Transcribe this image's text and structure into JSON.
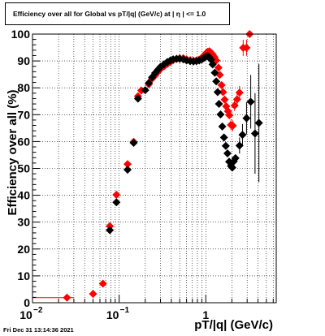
{
  "title": "Efficiency over all for Global vs pT/|q| (GeV/c) at |  η  | <= 1.0",
  "timestamp": "Fri Dec 31 13:14:36 2021",
  "chart_data": {
    "type": "scatter",
    "title": "Efficiency over all for Global vs pT/|q| (GeV/c) at |  η  | <= 1.0",
    "xlabel": "pT/|q| (GeV/c)",
    "ylabel": "Efficiency over all (%)",
    "xscale": "log",
    "xlim": [
      0.01,
      6.5
    ],
    "ylim": [
      0,
      100
    ],
    "grid": true,
    "y_ticks": [
      {
        "value": 0,
        "label": "0"
      },
      {
        "value": 10,
        "label": "10"
      },
      {
        "value": 20,
        "label": "20"
      },
      {
        "value": 30,
        "label": "30"
      },
      {
        "value": 40,
        "label": "40"
      },
      {
        "value": 50,
        "label": "50"
      },
      {
        "value": 60,
        "label": "60"
      },
      {
        "value": 70,
        "label": "70"
      },
      {
        "value": 80,
        "label": "80"
      },
      {
        "value": 90,
        "label": "90"
      },
      {
        "value": 100,
        "label": "100"
      }
    ],
    "x_ticks": [
      {
        "value": 0.01,
        "label": "10",
        "exp": "−2"
      },
      {
        "value": 0.1,
        "label": "10",
        "exp": "−1"
      },
      {
        "value": 1,
        "label": "1",
        "exp": ""
      }
    ],
    "series": [
      {
        "color": "#ff0000",
        "marker": "diamond",
        "points": [
          {
            "x": 0.025,
            "y": 1.9,
            "xlo": 0.0101,
            "xhi": 0.03
          },
          {
            "x": 0.05,
            "y": 3.3,
            "xlo": 0.045,
            "xhi": 0.055,
            "err": 1.5
          },
          {
            "x": 0.065,
            "y": 7.1
          },
          {
            "x": 0.078,
            "y": 28.5
          },
          {
            "x": 0.093,
            "y": 40.2
          },
          {
            "x": 0.125,
            "y": 51.6
          },
          {
            "x": 0.147,
            "y": 59.9
          },
          {
            "x": 0.165,
            "y": 76.9
          },
          {
            "x": 0.18,
            "y": 79.0
          },
          {
            "x": 0.22,
            "y": 81.3
          },
          {
            "x": 0.24,
            "y": 83.4
          },
          {
            "x": 0.26,
            "y": 84.6
          },
          {
            "x": 0.28,
            "y": 85.9
          },
          {
            "x": 0.3,
            "y": 87.0
          },
          {
            "x": 0.33,
            "y": 88.0
          },
          {
            "x": 0.36,
            "y": 88.9
          },
          {
            "x": 0.39,
            "y": 89.6
          },
          {
            "x": 0.42,
            "y": 90.3
          },
          {
            "x": 0.46,
            "y": 90.8
          },
          {
            "x": 0.5,
            "y": 91.0
          },
          {
            "x": 0.55,
            "y": 91.0
          },
          {
            "x": 0.6,
            "y": 90.6
          },
          {
            "x": 0.66,
            "y": 90.3
          },
          {
            "x": 0.72,
            "y": 90.1
          },
          {
            "x": 0.78,
            "y": 90.2
          },
          {
            "x": 0.84,
            "y": 90.5
          },
          {
            "x": 0.9,
            "y": 91.2
          },
          {
            "x": 0.95,
            "y": 92.0
          },
          {
            "x": 1.0,
            "y": 92.8
          },
          {
            "x": 1.05,
            "y": 93.4
          },
          {
            "x": 1.1,
            "y": 93.6
          },
          {
            "x": 1.15,
            "y": 93.1
          },
          {
            "x": 1.2,
            "y": 92.4
          },
          {
            "x": 1.26,
            "y": 91.4
          },
          {
            "x": 1.32,
            "y": 90.2
          },
          {
            "x": 1.4,
            "y": 87.5
          },
          {
            "x": 1.45,
            "y": 84.8
          },
          {
            "x": 1.52,
            "y": 81.0
          },
          {
            "x": 1.58,
            "y": 78.4
          },
          {
            "x": 1.65,
            "y": 75.6
          },
          {
            "x": 1.72,
            "y": 73.1
          },
          {
            "x": 1.8,
            "y": 71.3
          },
          {
            "x": 1.87,
            "y": 69.8
          },
          {
            "x": 1.95,
            "y": 66.2,
            "err": 2
          },
          {
            "x": 2.05,
            "y": 65.9,
            "err": 2
          },
          {
            "x": 2.15,
            "y": 73.4,
            "err": 2
          },
          {
            "x": 2.3,
            "y": 75.7,
            "err": 2
          },
          {
            "x": 2.45,
            "y": 78.2,
            "err": 2.5
          },
          {
            "x": 2.7,
            "y": 94.9,
            "err": 3
          },
          {
            "x": 2.95,
            "y": 94.9,
            "err": 3
          },
          {
            "x": 3.2,
            "y": 100.0
          }
        ]
      },
      {
        "color": "#000000",
        "marker": "diamond",
        "points": [
          {
            "x": 0.078,
            "y": 27.0
          },
          {
            "x": 0.093,
            "y": 37.4,
            "xlo": 0.088,
            "xhi": 0.1
          },
          {
            "x": 0.125,
            "y": 49.5
          },
          {
            "x": 0.147,
            "y": 59.5
          },
          {
            "x": 0.165,
            "y": 76.0
          },
          {
            "x": 0.2,
            "y": 79.1
          },
          {
            "x": 0.22,
            "y": 81.8
          },
          {
            "x": 0.24,
            "y": 83.9
          },
          {
            "x": 0.26,
            "y": 85.5
          },
          {
            "x": 0.28,
            "y": 86.7
          },
          {
            "x": 0.3,
            "y": 87.8
          },
          {
            "x": 0.33,
            "y": 88.8
          },
          {
            "x": 0.36,
            "y": 89.6
          },
          {
            "x": 0.39,
            "y": 90.2
          },
          {
            "x": 0.42,
            "y": 90.6
          },
          {
            "x": 0.46,
            "y": 90.8
          },
          {
            "x": 0.5,
            "y": 90.8
          },
          {
            "x": 0.55,
            "y": 90.6
          },
          {
            "x": 0.6,
            "y": 90.2
          },
          {
            "x": 0.66,
            "y": 89.9
          },
          {
            "x": 0.72,
            "y": 89.8
          },
          {
            "x": 0.78,
            "y": 89.9
          },
          {
            "x": 0.84,
            "y": 90.2
          },
          {
            "x": 0.9,
            "y": 90.6
          },
          {
            "x": 0.95,
            "y": 91.1
          },
          {
            "x": 1.0,
            "y": 91.6
          },
          {
            "x": 1.05,
            "y": 91.8
          },
          {
            "x": 1.1,
            "y": 91.4
          },
          {
            "x": 1.15,
            "y": 90.5
          },
          {
            "x": 1.2,
            "y": 88.7
          },
          {
            "x": 1.27,
            "y": 85.6
          },
          {
            "x": 1.32,
            "y": 82.4
          },
          {
            "x": 1.37,
            "y": 78.4
          },
          {
            "x": 1.42,
            "y": 74.0
          },
          {
            "x": 1.48,
            "y": 70.1
          },
          {
            "x": 1.55,
            "y": 65.6
          },
          {
            "x": 1.62,
            "y": 61.5
          },
          {
            "x": 1.7,
            "y": 58.4
          },
          {
            "x": 1.78,
            "y": 55.6
          },
          {
            "x": 1.86,
            "y": 52.5
          },
          {
            "x": 1.95,
            "y": 50.9
          },
          {
            "x": 2.02,
            "y": 50.3
          },
          {
            "x": 2.1,
            "y": 52.6
          },
          {
            "x": 2.2,
            "y": 53.8
          },
          {
            "x": 2.45,
            "y": 58.5,
            "err": 3
          },
          {
            "x": 2.65,
            "y": 62.5,
            "err": 4
          },
          {
            "x": 2.95,
            "y": 68.7,
            "err": 6
          },
          {
            "x": 3.3,
            "y": 74.8,
            "err": 10
          },
          {
            "x": 3.7,
            "y": 63.0,
            "err": 15
          },
          {
            "x": 4.1,
            "y": 66.9,
            "err": 22
          }
        ]
      }
    ]
  }
}
